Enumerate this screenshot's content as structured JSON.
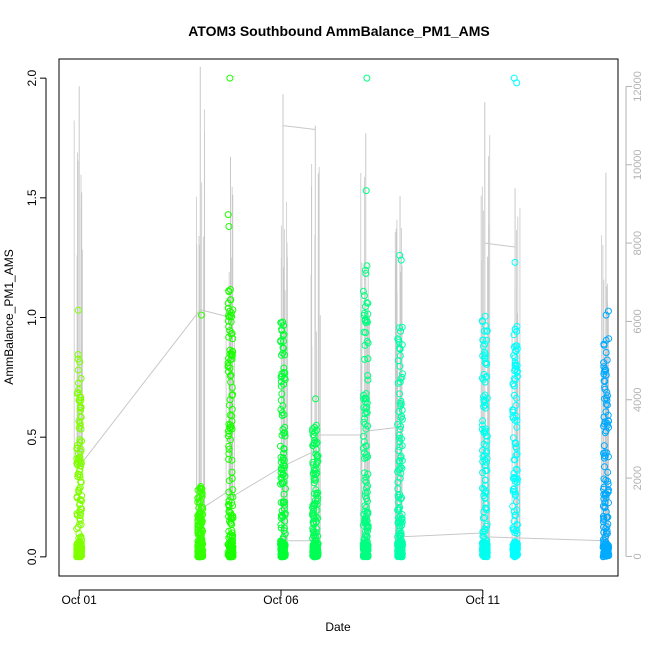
{
  "chart_data": {
    "type": "scatter",
    "title": "ATOM3 Southbound AmmBalance_PM1_AMS",
    "xlabel": "Date",
    "ylabel": "AmmBalance_PM1_AMS",
    "x_ticks": [
      "Oct 01",
      "Oct 06",
      "Oct 11"
    ],
    "x_tick_days": [
      1,
      6,
      11
    ],
    "xlim_days": [
      0.5,
      14.35
    ],
    "ylim": [
      -0.08,
      2.08
    ],
    "y_ticks": [
      0.0,
      0.5,
      1.0,
      1.5,
      2.0
    ],
    "y_tick_labels": [
      "0.0",
      "0.5",
      "1.0",
      "1.5",
      "2.0"
    ],
    "y2_ticks": [
      0,
      2000,
      4000,
      6000,
      8000,
      10000,
      12000
    ],
    "y2_tick_labels": [
      "0",
      "2000",
      "4000",
      "6000",
      "8000",
      "10000",
      "12000"
    ],
    "y2lim": [
      -500,
      12700
    ],
    "grid": false,
    "legend": "none",
    "point_series": [
      {
        "day": 1.0,
        "width": 0.06,
        "ymax": 0.87,
        "outliers": [
          1.03
        ],
        "color": "#80ff00"
      },
      {
        "day": 4.0,
        "width": 0.08,
        "ymax": 0.3,
        "outliers": [
          1.01
        ],
        "color": "#33ff00"
      },
      {
        "day": 4.75,
        "width": 0.12,
        "ymax": 1.14,
        "outliers": [
          1.38,
          1.43,
          2.0
        ],
        "color": "#1aff00"
      },
      {
        "day": 6.05,
        "width": 0.12,
        "ymax": 0.99,
        "outliers": [],
        "color": "#00ff33"
      },
      {
        "day": 6.85,
        "width": 0.14,
        "ymax": 0.57,
        "outliers": [
          0.66
        ],
        "color": "#00ff55"
      },
      {
        "day": 8.1,
        "width": 0.12,
        "ymax": 1.23,
        "outliers": [
          1.53,
          2.0
        ],
        "color": "#00ff80"
      },
      {
        "day": 8.95,
        "width": 0.1,
        "ymax": 0.96,
        "outliers": [
          1.24,
          1.26
        ],
        "color": "#00ffaa"
      },
      {
        "day": 11.05,
        "width": 0.1,
        "ymax": 1.02,
        "outliers": [],
        "color": "#00ffee"
      },
      {
        "day": 11.8,
        "width": 0.1,
        "ymax": 0.97,
        "outliers": [
          1.23,
          1.98,
          2.0
        ],
        "color": "#00ffff"
      },
      {
        "day": 14.05,
        "width": 0.14,
        "ymax": 1.08,
        "outliers": [],
        "color": "#00aaff"
      }
    ],
    "secondary_line": {
      "color": "#c8c8c8",
      "segments": [
        {
          "day": 1.0,
          "lo": 2300,
          "hi": 12000
        },
        {
          "day": 4.0,
          "lo": 1200,
          "hi": 12500
        },
        {
          "day": 4.75,
          "lo": 1500,
          "hi": 10200
        },
        {
          "day": 6.05,
          "lo": 0,
          "hi": 11800
        },
        {
          "day": 6.85,
          "lo": 0,
          "hi": 11000
        },
        {
          "day": 8.1,
          "lo": 0,
          "hi": 10800
        },
        {
          "day": 8.95,
          "lo": 0,
          "hi": 9200
        },
        {
          "day": 11.05,
          "lo": 0,
          "hi": 11600
        },
        {
          "day": 11.8,
          "lo": 0,
          "hi": 9400
        },
        {
          "day": 14.05,
          "lo": 0,
          "hi": 9800
        }
      ],
      "connectors": [
        [
          [
            1.0,
            2300
          ],
          [
            4.0,
            6300
          ]
        ],
        [
          [
            4.0,
            1200
          ],
          [
            4.75,
            1700
          ]
        ],
        [
          [
            4.0,
            6300
          ],
          [
            4.75,
            6100
          ]
        ],
        [
          [
            4.75,
            1500
          ],
          [
            6.05,
            2300
          ]
        ],
        [
          [
            6.05,
            2300
          ],
          [
            6.85,
            2700
          ]
        ],
        [
          [
            6.05,
            11000
          ],
          [
            6.85,
            10900
          ]
        ],
        [
          [
            6.05,
            400
          ],
          [
            6.85,
            400
          ]
        ],
        [
          [
            6.85,
            3100
          ],
          [
            8.1,
            3100
          ]
        ],
        [
          [
            8.1,
            3200
          ],
          [
            8.95,
            3300
          ]
        ],
        [
          [
            8.95,
            500
          ],
          [
            11.05,
            600
          ]
        ],
        [
          [
            11.05,
            8000
          ],
          [
            11.8,
            7900
          ]
        ],
        [
          [
            11.05,
            500
          ],
          [
            14.05,
            400
          ]
        ]
      ]
    }
  }
}
